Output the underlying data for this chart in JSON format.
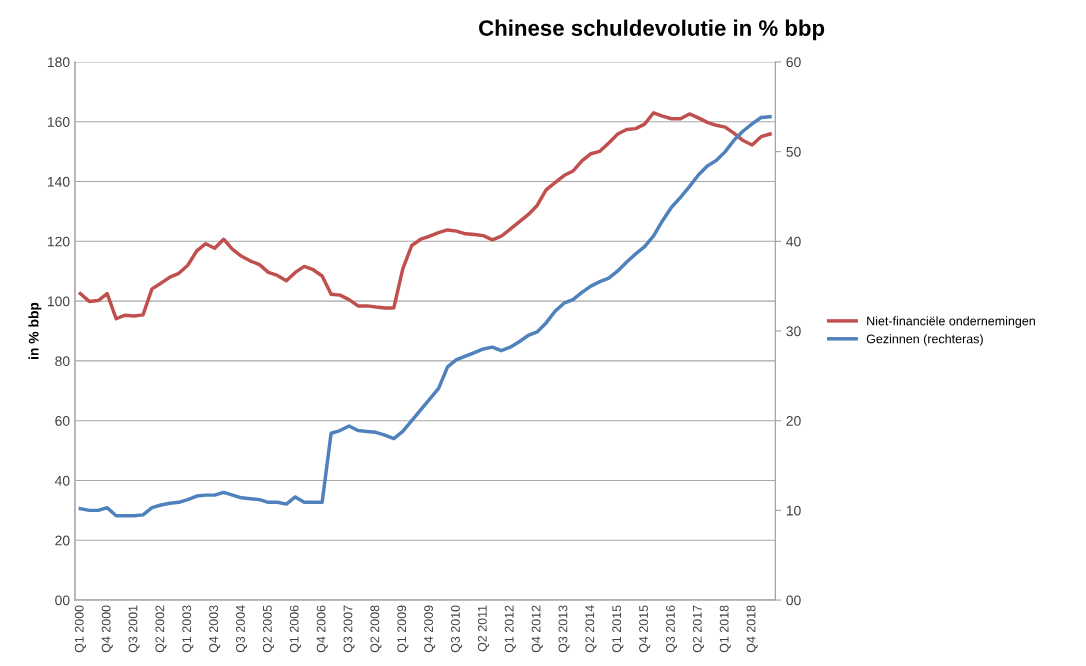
{
  "chart_data": {
    "type": "line",
    "title": "Chinese schuldevolutie in % bbp",
    "ylabel": "in % bbp",
    "categories": [
      "Q1 2000",
      null,
      null,
      "Q4 2000",
      null,
      null,
      "Q3 2001",
      null,
      null,
      "Q2 2002",
      null,
      null,
      "Q1 2003",
      null,
      null,
      "Q4 2003",
      null,
      null,
      "Q3 2004",
      null,
      null,
      "Q2 2005",
      null,
      null,
      "Q1 2006",
      null,
      null,
      "Q4 2006",
      null,
      null,
      "Q3 2007",
      null,
      null,
      "Q2 2008",
      null,
      null,
      "Q1 2009",
      null,
      null,
      "Q4 2009",
      null,
      null,
      "Q3 2010",
      null,
      null,
      "Q2 2011",
      null,
      null,
      "Q1 2012",
      null,
      null,
      "Q4 2012",
      null,
      null,
      "Q3 2013",
      null,
      null,
      "Q2 2014",
      null,
      null,
      "Q1 2015",
      null,
      null,
      "Q4 2015",
      null,
      null,
      "Q3 2016",
      null,
      null,
      "Q2 2017",
      null,
      null,
      "Q1 2018",
      null,
      null,
      "Q4 2018",
      null,
      null
    ],
    "series": [
      {
        "name": "Niet-financiële ondernemingen",
        "color": "#c0504d",
        "values": [
          102.5,
          99.9,
          100.2,
          102.5,
          94.1,
          95.3,
          95,
          95.4,
          104.1,
          106,
          108,
          109.3,
          112,
          116.8,
          119.2,
          117.7,
          120.7,
          117.3,
          115,
          113.4,
          112.2,
          109.6,
          108.6,
          106.8,
          109.6,
          111.6,
          110.5,
          108.4,
          102.3,
          102,
          100.5,
          98.4,
          98.4,
          98,
          97.7,
          97.7,
          110.8,
          118.6,
          120.7,
          121.7,
          122.9,
          123.8,
          123.4,
          122.5,
          122.3,
          121.9,
          120.5,
          121.7,
          124.1,
          126.5,
          128.9,
          132,
          137.2,
          139.6,
          142,
          143.5,
          146.9,
          149.3,
          150.1,
          152.9,
          155.9,
          157.4,
          157.7,
          159.2,
          163,
          161.9,
          161,
          161,
          162.6,
          161.3,
          159.8,
          158.8,
          158.2,
          156.1,
          153.7,
          152.2,
          155,
          155.9
        ]
      },
      {
        "name": "Gezinnen (rechteras)",
        "color": "#4f81bd",
        "axis": "y2",
        "values": [
          10.2,
          10,
          10,
          10.3,
          9.4,
          9.4,
          9.4,
          9.5,
          10.3,
          10.6,
          10.8,
          10.9,
          11.2,
          11.6,
          11.7,
          11.7,
          12,
          11.7,
          11.4,
          11.3,
          11.2,
          10.9,
          10.9,
          10.7,
          11.5,
          10.9,
          10.9,
          10.9,
          18.6,
          18.9,
          19.4,
          18.9,
          18.8,
          18.7,
          18.4,
          18,
          18.8,
          20,
          21.2,
          22.4,
          23.6,
          26,
          26.8,
          27.2,
          27.6,
          28,
          28.2,
          27.8,
          28.2,
          28.8,
          29.5,
          29.9,
          30.9,
          32.2,
          33.1,
          33.5,
          34.3,
          35,
          35.5,
          35.9,
          36.7,
          37.7,
          38.6,
          39.4,
          40.6,
          42.3,
          43.8,
          44.9,
          46.1,
          47.4,
          48.4,
          49,
          50,
          51.3,
          52.3,
          53.1,
          53.8,
          53.9
        ]
      }
    ],
    "ylim": [
      0,
      180
    ],
    "yticks": [
      {
        "value": 0,
        "label": "00"
      },
      20,
      40,
      60,
      80,
      100,
      120,
      140,
      160,
      180
    ],
    "y2lim": [
      0,
      60
    ],
    "y2ticks": [
      {
        "value": 0,
        "label": "00"
      },
      10,
      20,
      30,
      40,
      50,
      60
    ],
    "grid": "y",
    "legend": "right",
    "marker": "none",
    "line_style": "solid"
  }
}
